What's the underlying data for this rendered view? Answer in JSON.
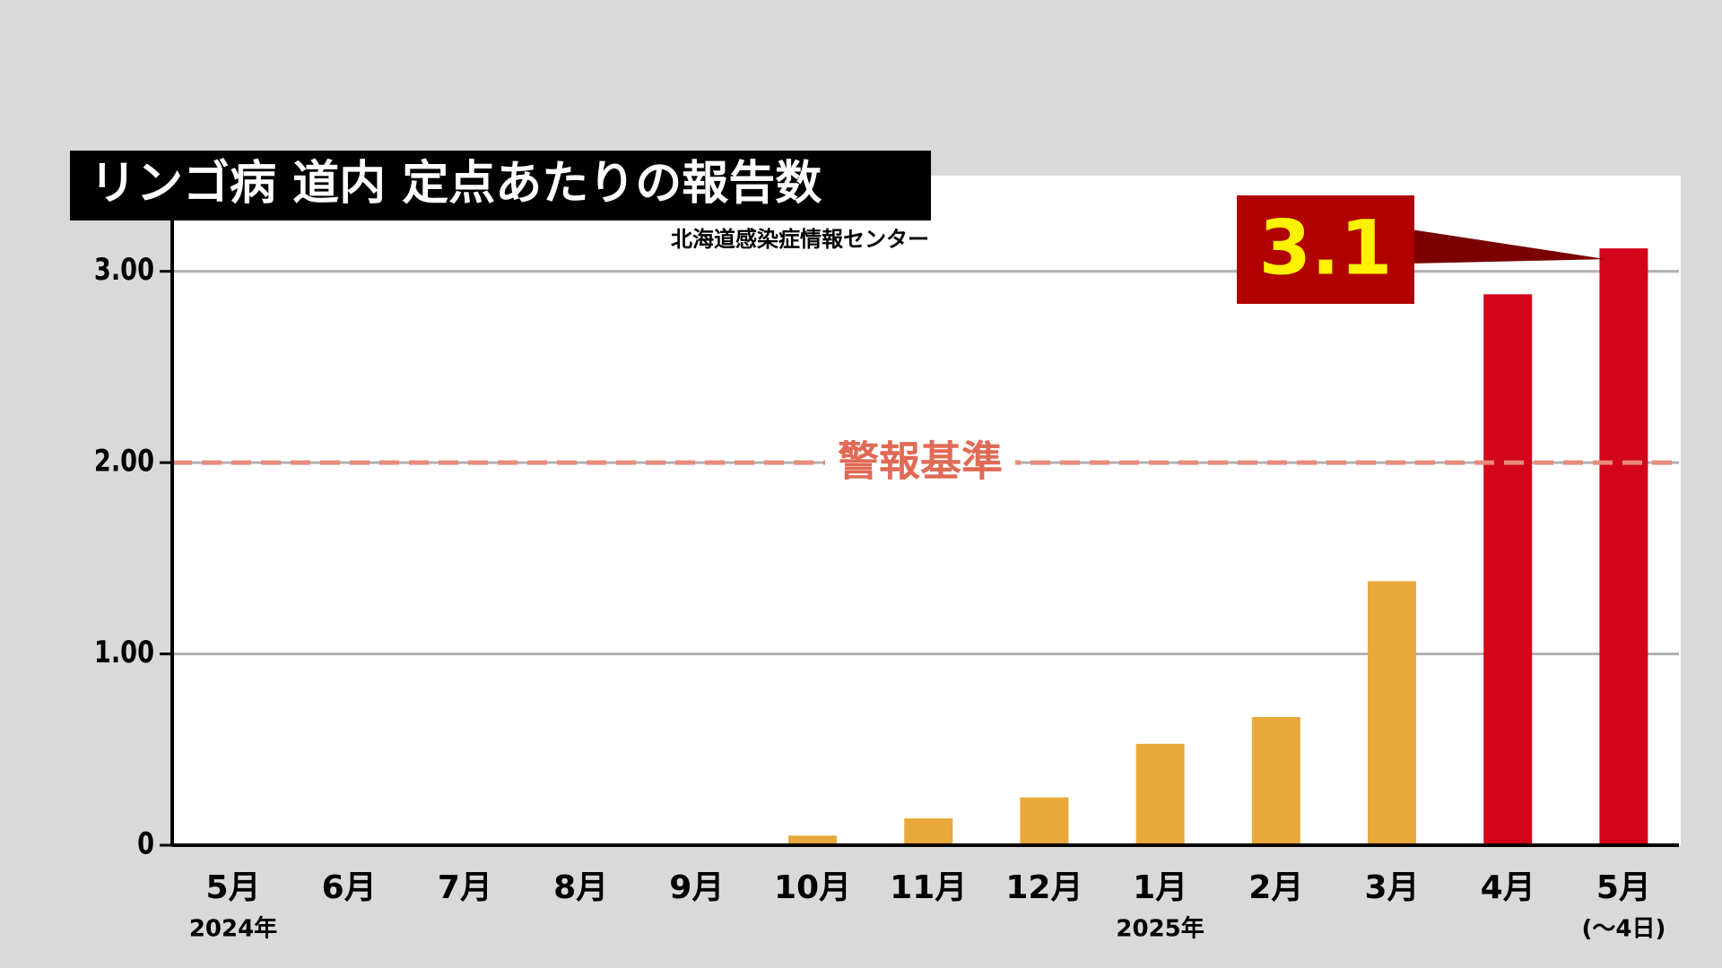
{
  "chart_data": {
    "type": "bar",
    "title": "リンゴ病 道内 定点あたりの報告数",
    "source": "北海道感染症情報センター",
    "categories": [
      "5月",
      "6月",
      "7月",
      "8月",
      "9月",
      "10月",
      "11月",
      "12月",
      "1月",
      "2月",
      "3月",
      "4月",
      "5月"
    ],
    "sublabels": [
      "2024年",
      null,
      null,
      null,
      null,
      null,
      null,
      null,
      "2025年",
      null,
      null,
      null,
      "(〜4日)"
    ],
    "values": [
      0,
      0,
      0,
      0,
      0,
      0.05,
      0.14,
      0.25,
      0.53,
      0.67,
      1.38,
      2.88,
      3.12
    ],
    "value_labels": [
      null,
      null,
      null,
      null,
      null,
      null,
      null,
      null,
      null,
      null,
      null,
      null,
      "3.1"
    ],
    "colors": [
      "#e9a83a",
      "#e9a83a",
      "#e9a83a",
      "#e9a83a",
      "#e9a83a",
      "#e9a83a",
      "#e9a83a",
      "#e9a83a",
      "#e9a83a",
      "#e9a83a",
      "#e9a83a",
      "#d3041a",
      "#d3041a"
    ],
    "ylim": [
      0,
      3.5
    ],
    "yticks": [
      0,
      {
        "value": 1,
        "label": "1.00"
      },
      {
        "value": 2,
        "label": "2.00"
      },
      {
        "value": 3,
        "label": "3.00"
      }
    ],
    "grid": true,
    "reference_line": {
      "value": 2,
      "label": "警報基準",
      "color": "#e8897a"
    }
  }
}
